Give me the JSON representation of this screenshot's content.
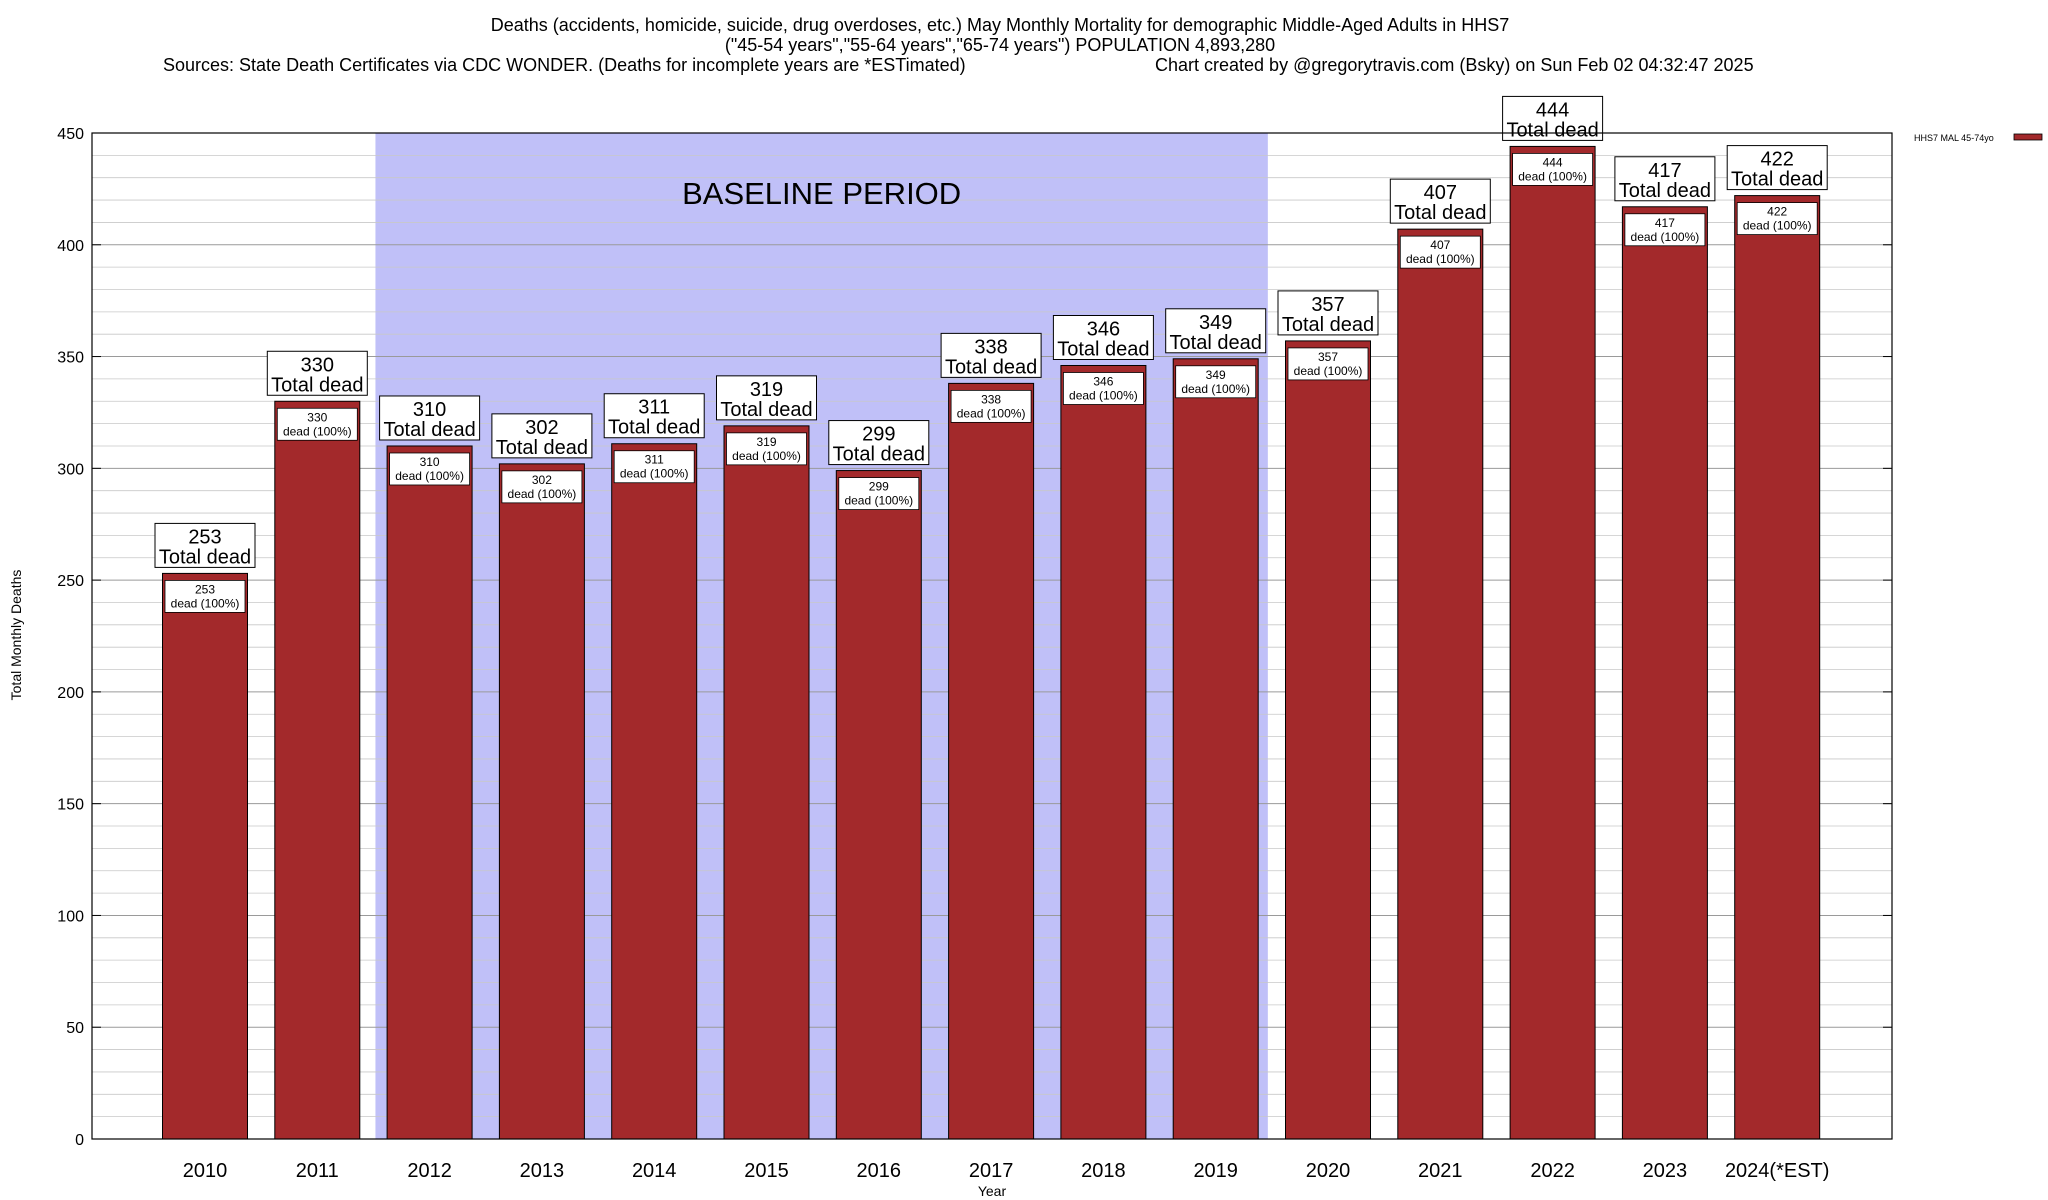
{
  "header": {
    "line1": "Deaths (accidents, homicide, suicide, drug overdoses, etc.) May Monthly Mortality for demographic Middle-Aged Adults in HHS7",
    "line2": "(\"45-54 years\",\"55-64 years\",\"65-74 years\") POPULATION 4,893,280",
    "sources": "Sources: State Death Certificates via CDC WONDER. (Deaths for incomplete years are *ESTimated)",
    "credit": "Chart created by @gregorytravis.com (Bsky) on Sun Feb 02 04:32:47 2025"
  },
  "chart_data": {
    "type": "bar",
    "xlabel": "Year",
    "ylabel": "Total Monthly Deaths",
    "ylim": [
      0,
      450
    ],
    "y_ticks": [
      0,
      50,
      100,
      150,
      200,
      250,
      300,
      350,
      400,
      450
    ],
    "y_minor_step": 10,
    "grid": true,
    "legend_position": "top-right",
    "categories": [
      "2010",
      "2011",
      "2012",
      "2013",
      "2014",
      "2015",
      "2016",
      "2017",
      "2018",
      "2019",
      "2020",
      "2021",
      "2022",
      "2023",
      "2024(*EST)"
    ],
    "series": [
      {
        "name": "HHS7 MAL 45-74yo",
        "color": "#a3292b",
        "values": [
          253,
          330,
          310,
          302,
          311,
          319,
          299,
          338,
          346,
          349,
          357,
          407,
          444,
          417,
          422
        ]
      }
    ],
    "top_label_suffix": "Total dead",
    "inner_label_suffix": "dead (100%)",
    "baseline_period": {
      "label": "BASELINE PERIOD",
      "start": "2012",
      "end": "2019",
      "color": "#c0c0f8"
    }
  }
}
